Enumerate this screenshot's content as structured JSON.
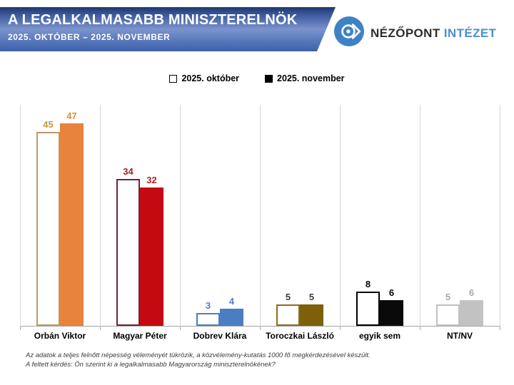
{
  "header": {
    "title": "A LEGALKALMASABB MINISZTERELNÖK",
    "subtitle": "2025. OKTÓBER – 2025. NOVEMBER"
  },
  "logo": {
    "name_primary": "NÉZŐPONT",
    "name_secondary": "INTÉZET",
    "icon": "nezopont-eye-icon",
    "accent_color": "#3e82c4"
  },
  "legend": {
    "items": [
      {
        "label": "2025. október",
        "swatch": "outlined"
      },
      {
        "label": "2025. november",
        "swatch": "filled"
      }
    ]
  },
  "chart_data": {
    "type": "bar",
    "title": "A legalkalmasabb miniszterelnök",
    "categories": [
      "Orbán Viktor",
      "Magyar Péter",
      "Dobrev Klára",
      "Toroczkai László",
      "egyik sem",
      "NT/NV"
    ],
    "series": [
      {
        "name": "2025. október",
        "style": "outlined",
        "values": [
          45,
          34,
          3,
          5,
          8,
          5
        ]
      },
      {
        "name": "2025. november",
        "style": "filled",
        "values": [
          47,
          32,
          4,
          5,
          6,
          6
        ]
      }
    ],
    "category_colors": [
      {
        "border": "#b79a6d",
        "fill": "#e8833b",
        "label_oct": "#c8963c",
        "label_nov": "#e28c2e"
      },
      {
        "border": "#702433",
        "fill": "#c40a10",
        "label_oct": "#9c2431",
        "label_nov": "#b51e24"
      },
      {
        "border": "#4d7fb8",
        "fill": "#4b7dc2",
        "label_oct": "#4b80c0",
        "label_nov": "#4b80c0"
      },
      {
        "border": "#8a6d1d",
        "fill": "#7d6008",
        "label_oct": "#3d3d3d",
        "label_nov": "#3d3d3d"
      },
      {
        "border": "#000000",
        "fill": "#0a0a0a",
        "label_oct": "#000000",
        "label_nov": "#000000"
      },
      {
        "border": "#c0c0c0",
        "fill": "#c2c2c2",
        "label_oct": "#a8a8a8",
        "label_nov": "#a8a8a8"
      }
    ],
    "ylim": [
      0,
      51
    ],
    "grid": "vertical-category-separators",
    "legend_position": "top-center",
    "value_labels": "above-bars"
  },
  "footer": {
    "line1": "Az adatok a teljes felnőtt népesség véleményét tükrözik, a közvélemény-kutatás 1000 fő megkérdezésével készült.",
    "line2": "A feltett kérdés: Ön szerint ki a legalkalmasabb Magyarország miniszterelnökének?"
  }
}
